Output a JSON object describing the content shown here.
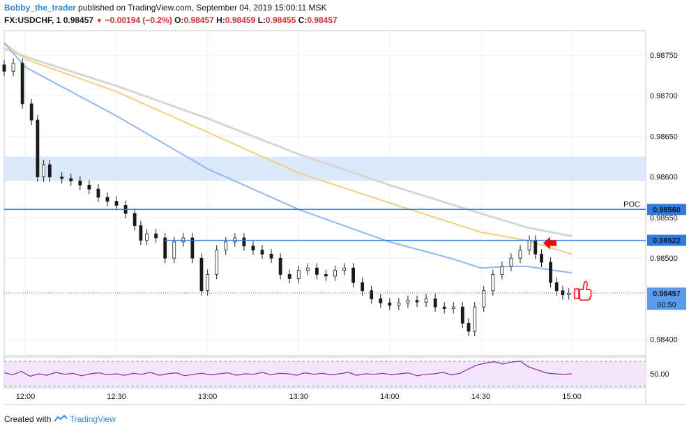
{
  "header": {
    "author": "Bobby_the_trader",
    "published_text": "published on TradingView.com, September 04, 2019 15:00:11 MSK",
    "symbol": "FX:USDCHF, 1",
    "last": "0.98457",
    "change": "−0.00194 (−0.2%)",
    "o_label": "O:",
    "o_value": "0.98457",
    "h_label": "H:",
    "h_value": "0.98459",
    "l_label": "L:",
    "l_value": "0.98455",
    "c_label": "C:",
    "c_value": "0.98457"
  },
  "footer": {
    "created_with": "Created with",
    "brand": "TradingView"
  },
  "colors": {
    "up": "#2e7d32",
    "down": "#222222",
    "candle": "#1a1a1a",
    "ma_fast": "#90b8f0",
    "ma_mid": "#f0d080",
    "ma_slow": "#d6d6d6",
    "level": "#2f7be0",
    "zone": "#d6e4fb",
    "rsi": "#8e24aa",
    "rsi_band": "#f3e6fb",
    "arrow": "#ff0000",
    "label_bg": "#2f7be0"
  },
  "chart_data": {
    "type": "candlestick",
    "symbol": "FX:USDCHF",
    "interval": "1",
    "y_ticks": [
      "0.98750",
      "0.98700",
      "0.98650",
      "0.98600",
      "0.98550",
      "0.98500",
      "0.98400"
    ],
    "y_range": [
      0.9838,
      0.9878
    ],
    "x_ticks": [
      "12:00",
      "12:30",
      "13:00",
      "13:30",
      "14:00",
      "14:30",
      "15:00"
    ],
    "time_range": [
      "11:53",
      "15:00"
    ],
    "levels": [
      {
        "label": "POC",
        "value": "0.98560"
      },
      {
        "label": "",
        "value": "0.98522"
      }
    ],
    "current_price": {
      "value": "0.98457",
      "countdown": "00:50"
    },
    "zone": [
      0.98595,
      0.98625
    ],
    "close_series": [
      [
        "11:53",
        0.9873
      ],
      [
        "11:56",
        0.9874
      ],
      [
        "11:59",
        0.9869
      ],
      [
        "12:02",
        0.9867
      ],
      [
        "12:04",
        0.986
      ],
      [
        "12:06",
        0.98615
      ],
      [
        "12:08",
        0.986
      ],
      [
        "12:12",
        0.98598
      ],
      [
        "12:15",
        0.98595
      ],
      [
        "12:18",
        0.9859
      ],
      [
        "12:21",
        0.98585
      ],
      [
        "12:24",
        0.98575
      ],
      [
        "12:27",
        0.9857
      ],
      [
        "12:30",
        0.98565
      ],
      [
        "12:33",
        0.98555
      ],
      [
        "12:36",
        0.9854
      ],
      [
        "12:38",
        0.98522
      ],
      [
        "12:40",
        0.9853
      ],
      [
        "12:43",
        0.98525
      ],
      [
        "12:46",
        0.985
      ],
      [
        "12:49",
        0.9852
      ],
      [
        "12:52",
        0.98525
      ],
      [
        "12:55",
        0.985
      ],
      [
        "12:58",
        0.9846
      ],
      [
        "13:00",
        0.9848
      ],
      [
        "13:03",
        0.9851
      ],
      [
        "13:06",
        0.9852
      ],
      [
        "13:09",
        0.98525
      ],
      [
        "13:12",
        0.98515
      ],
      [
        "13:15",
        0.9851
      ],
      [
        "13:18",
        0.98505
      ],
      [
        "13:21",
        0.985
      ],
      [
        "13:24",
        0.9848
      ],
      [
        "13:27",
        0.98475
      ],
      [
        "13:30",
        0.98485
      ],
      [
        "13:33",
        0.98488
      ],
      [
        "13:36",
        0.9848
      ],
      [
        "13:39",
        0.98478
      ],
      [
        "13:42",
        0.98485
      ],
      [
        "13:45",
        0.98488
      ],
      [
        "13:48",
        0.9847
      ],
      [
        "13:51",
        0.9846
      ],
      [
        "13:54",
        0.9845
      ],
      [
        "13:57",
        0.98445
      ],
      [
        "14:00",
        0.98442
      ],
      [
        "14:03",
        0.98445
      ],
      [
        "14:06",
        0.98448
      ],
      [
        "14:09",
        0.98446
      ],
      [
        "14:12",
        0.9845
      ],
      [
        "14:15",
        0.9844
      ],
      [
        "14:18",
        0.98438
      ],
      [
        "14:21",
        0.9844
      ],
      [
        "14:24",
        0.9842
      ],
      [
        "14:26",
        0.9841
      ],
      [
        "14:28",
        0.9844
      ],
      [
        "14:31",
        0.9846
      ],
      [
        "14:34",
        0.9848
      ],
      [
        "14:37",
        0.9849
      ],
      [
        "14:40",
        0.985
      ],
      [
        "14:43",
        0.9851
      ],
      [
        "14:46",
        0.98522
      ],
      [
        "14:48",
        0.98505
      ],
      [
        "14:50",
        0.98495
      ],
      [
        "14:53",
        0.9847
      ],
      [
        "14:55",
        0.9846
      ],
      [
        "14:57",
        0.98455
      ],
      [
        "14:59",
        0.98457
      ]
    ],
    "ma_fast": [
      [
        "11:53",
        0.98765
      ],
      [
        "12:00",
        0.98735
      ],
      [
        "12:30",
        0.98675
      ],
      [
        "13:00",
        0.9861
      ],
      [
        "13:30",
        0.9856
      ],
      [
        "14:00",
        0.9852
      ],
      [
        "14:20",
        0.985
      ],
      [
        "14:30",
        0.98488
      ],
      [
        "14:40",
        0.9849
      ],
      [
        "14:45",
        0.9849
      ],
      [
        "15:00",
        0.98482
      ]
    ],
    "ma_mid": [
      [
        "11:53",
        0.98765
      ],
      [
        "12:00",
        0.98745
      ],
      [
        "12:30",
        0.98705
      ],
      [
        "13:00",
        0.98655
      ],
      [
        "13:30",
        0.98605
      ],
      [
        "14:00",
        0.98568
      ],
      [
        "14:30",
        0.98532
      ],
      [
        "14:45",
        0.98522
      ],
      [
        "15:00",
        0.98505
      ]
    ],
    "ma_slow": [
      [
        "11:53",
        0.98758
      ],
      [
        "12:00",
        0.98748
      ],
      [
        "12:30",
        0.98712
      ],
      [
        "13:00",
        0.98672
      ],
      [
        "13:30",
        0.98628
      ],
      [
        "14:00",
        0.9859
      ],
      [
        "14:30",
        0.98555
      ],
      [
        "14:45",
        0.98538
      ],
      [
        "15:00",
        0.98527
      ]
    ],
    "rsi": {
      "tick": "50.00",
      "series": [
        52,
        48,
        55,
        45,
        50,
        47,
        53,
        49,
        51,
        46,
        50,
        52,
        48,
        50,
        47,
        51,
        49,
        53,
        47,
        50,
        52,
        46,
        49,
        51,
        48,
        50,
        52,
        47,
        50,
        49,
        53,
        48,
        51,
        50,
        47,
        52,
        49,
        51,
        48,
        50,
        53,
        47,
        50,
        49,
        51,
        48,
        50,
        52,
        46,
        49,
        50,
        53,
        48,
        51,
        60,
        68,
        72,
        75,
        70,
        74,
        76,
        64,
        58,
        52,
        50,
        49,
        50
      ]
    },
    "annotations": [
      {
        "type": "arrow-left",
        "near": "0.98522"
      },
      {
        "type": "thumbs-up",
        "near": "0.98457"
      }
    ]
  }
}
